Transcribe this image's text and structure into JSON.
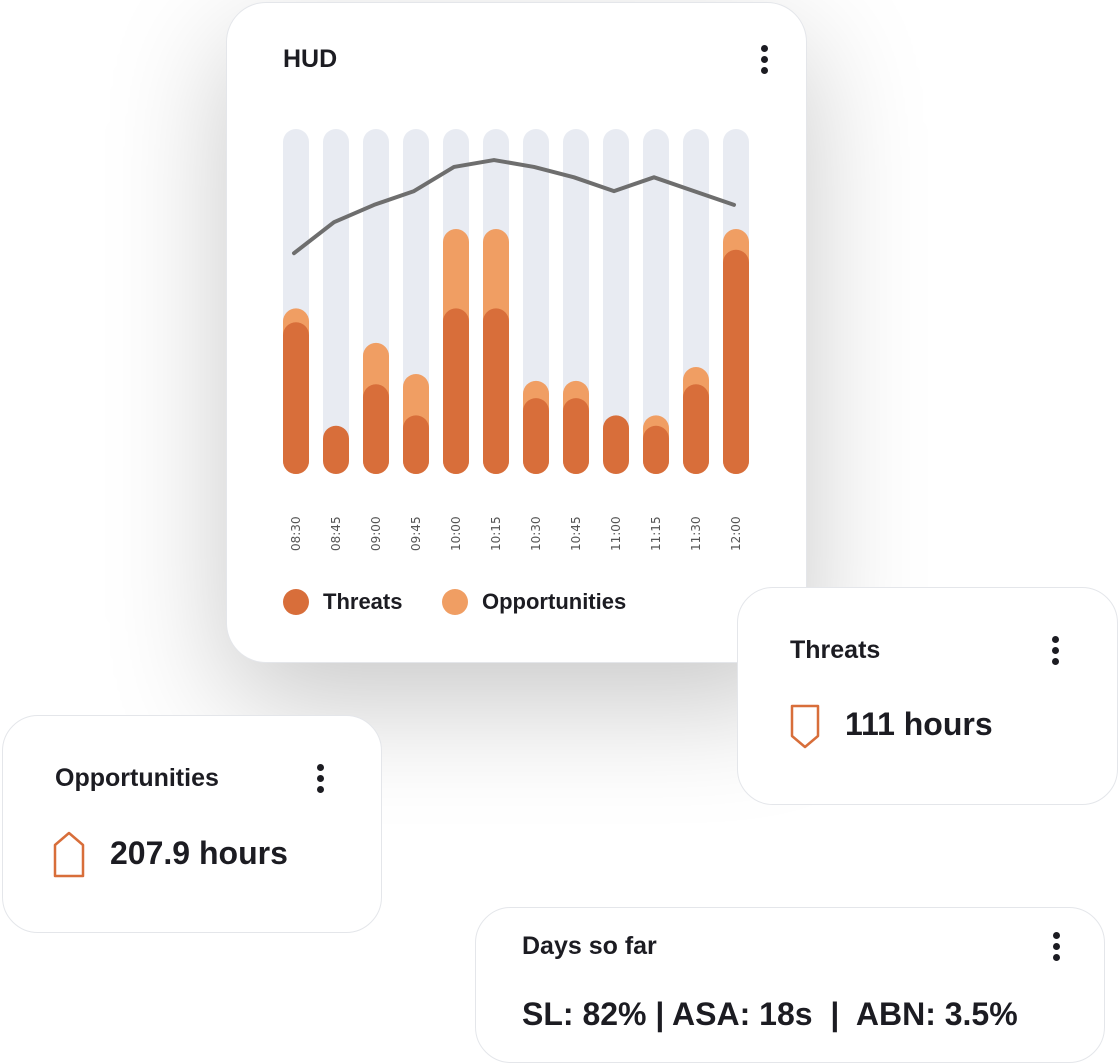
{
  "hud": {
    "title": "HUD",
    "legend": [
      {
        "label": "Threats",
        "color": "#d86e3a"
      },
      {
        "label": "Opportunities",
        "color": "#f09e63"
      }
    ]
  },
  "chart_data": {
    "type": "bar",
    "stacked": true,
    "categories": [
      "08:30",
      "08:45",
      "09:00",
      "09:45",
      "10:00",
      "10:15",
      "10:30",
      "10:45",
      "11:00",
      "11:15",
      "11:30",
      "12:00"
    ],
    "series": [
      {
        "name": "Threats",
        "values": [
          44,
          14,
          26,
          17,
          48,
          48,
          22,
          22,
          17,
          14,
          26,
          65
        ]
      },
      {
        "name": "Opportunities",
        "values": [
          4,
          0,
          12,
          12,
          23,
          23,
          5,
          5,
          0,
          3,
          5,
          6
        ]
      },
      {
        "name": "Trend",
        "type": "line",
        "values": [
          64,
          73,
          78,
          82,
          89,
          91,
          89,
          86,
          82,
          86,
          82,
          78
        ]
      }
    ],
    "ylim": [
      0,
      100
    ],
    "colors": {
      "threats": "#d86e3a",
      "opportunities": "#f09e63",
      "track": "#e8ebf2",
      "line": "#6e6e6e"
    }
  },
  "threats_card": {
    "title": "Threats",
    "value": "111 hours",
    "icon": "tag-down-icon"
  },
  "opps_card": {
    "title": "Opportunities",
    "value": "207.9 hours",
    "icon": "tag-up-icon"
  },
  "days_card": {
    "title": "Days so far",
    "stats": "SL: 82% | ASA: 18s  |  ABN: 3.5%"
  }
}
